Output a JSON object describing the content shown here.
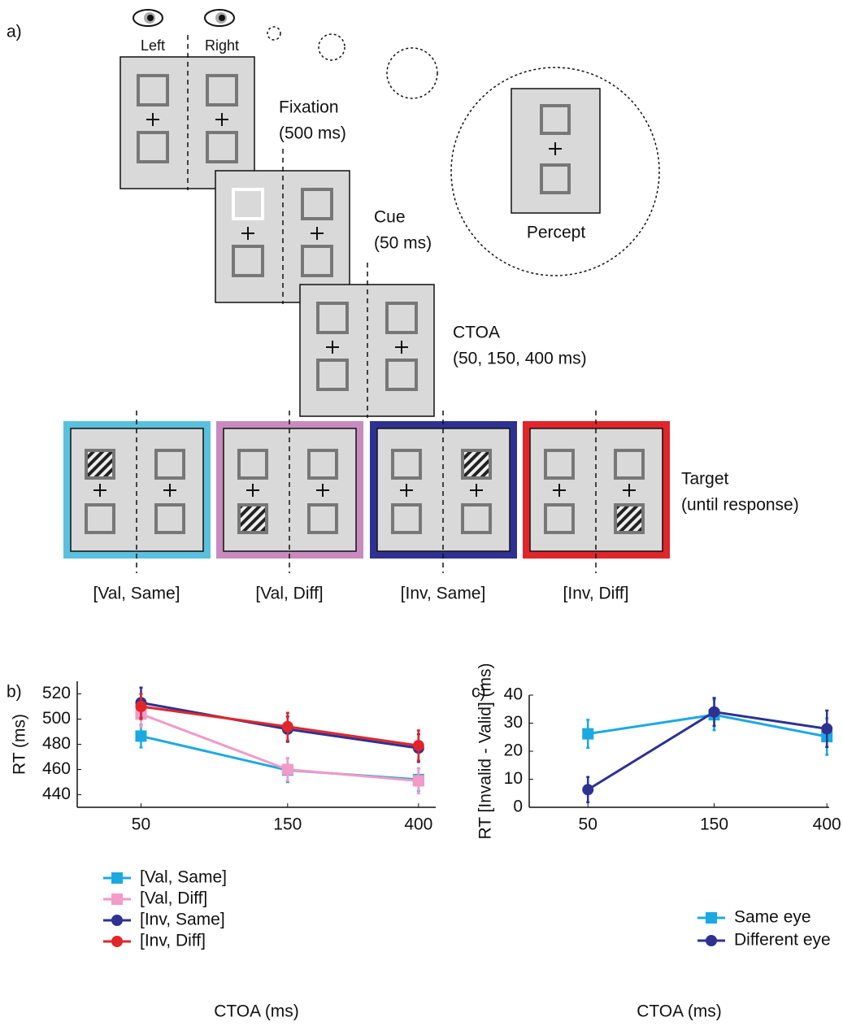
{
  "panel_labels": [
    "a)",
    "b)",
    "c)"
  ],
  "diagram": {
    "eyes": [
      "Left",
      "Right"
    ],
    "stages": [
      {
        "label": "Fixation",
        "duration": "(500 ms)"
      },
      {
        "label": "Cue",
        "duration": "(50 ms)"
      },
      {
        "label": "CTOA",
        "duration": "(50, 150, 400 ms)"
      },
      {
        "label": "Target",
        "duration": "(until response)"
      }
    ],
    "percept": "Percept",
    "conditions": [
      "[Val, Same]",
      "[Val, Diff]",
      "[Inv, Same]",
      "[Inv, Diff]"
    ]
  },
  "chart_data": [
    {
      "type": "line",
      "y_label": "RT (ms)",
      "x_label": "CTOA (ms)",
      "x": [
        50,
        150,
        400
      ],
      "xscale": "log",
      "xlim": [
        31,
        455
      ],
      "xticks": [
        50,
        150,
        400
      ],
      "ylim": [
        430,
        530
      ],
      "yticks": [
        440,
        460,
        480,
        500,
        520
      ],
      "legend": "lower left",
      "series": [
        {
          "name": "[Val, Same]",
          "color": "#1ba9e1",
          "marker": "square",
          "values": [
            486.5,
            459.5,
            452
          ],
          "errors": [
            9,
            9.5,
            9
          ]
        },
        {
          "name": "[Val, Diff]",
          "color": "#f29ac8",
          "marker": "square",
          "values": [
            504,
            460,
            451
          ],
          "errors": [
            10,
            9,
            10
          ]
        },
        {
          "name": "[Inv, Same]",
          "color": "#2e3192",
          "marker": "circle",
          "values": [
            513,
            492,
            477
          ],
          "errors": [
            12,
            10,
            11
          ]
        },
        {
          "name": "[Inv, Diff]",
          "color": "#e0262a",
          "marker": "circle",
          "values": [
            510,
            494,
            479
          ],
          "errors": [
            10,
            11,
            12
          ]
        }
      ]
    },
    {
      "type": "line",
      "y_label": "RT [Invalid - Valid]  (ms)",
      "x_label": "CTOA (ms)",
      "x": [
        50,
        150,
        400
      ],
      "xscale": "log",
      "xlim": [
        30,
        408
      ],
      "xticks": [
        50,
        150,
        400
      ],
      "ylim": [
        0,
        40
      ],
      "yticks": [
        0,
        10,
        20,
        30,
        40
      ],
      "legend": "lower right",
      "series": [
        {
          "name": "Same eye",
          "color": "#1ba9e1",
          "marker": "square",
          "values": [
            26.2,
            33,
            25.2
          ],
          "errors": [
            5,
            5.5,
            6.5
          ]
        },
        {
          "name": "Different eye",
          "color": "#2e3192",
          "marker": "circle",
          "values": [
            6.3,
            34,
            28
          ],
          "errors": [
            4.5,
            5,
            6.5
          ]
        }
      ]
    }
  ]
}
